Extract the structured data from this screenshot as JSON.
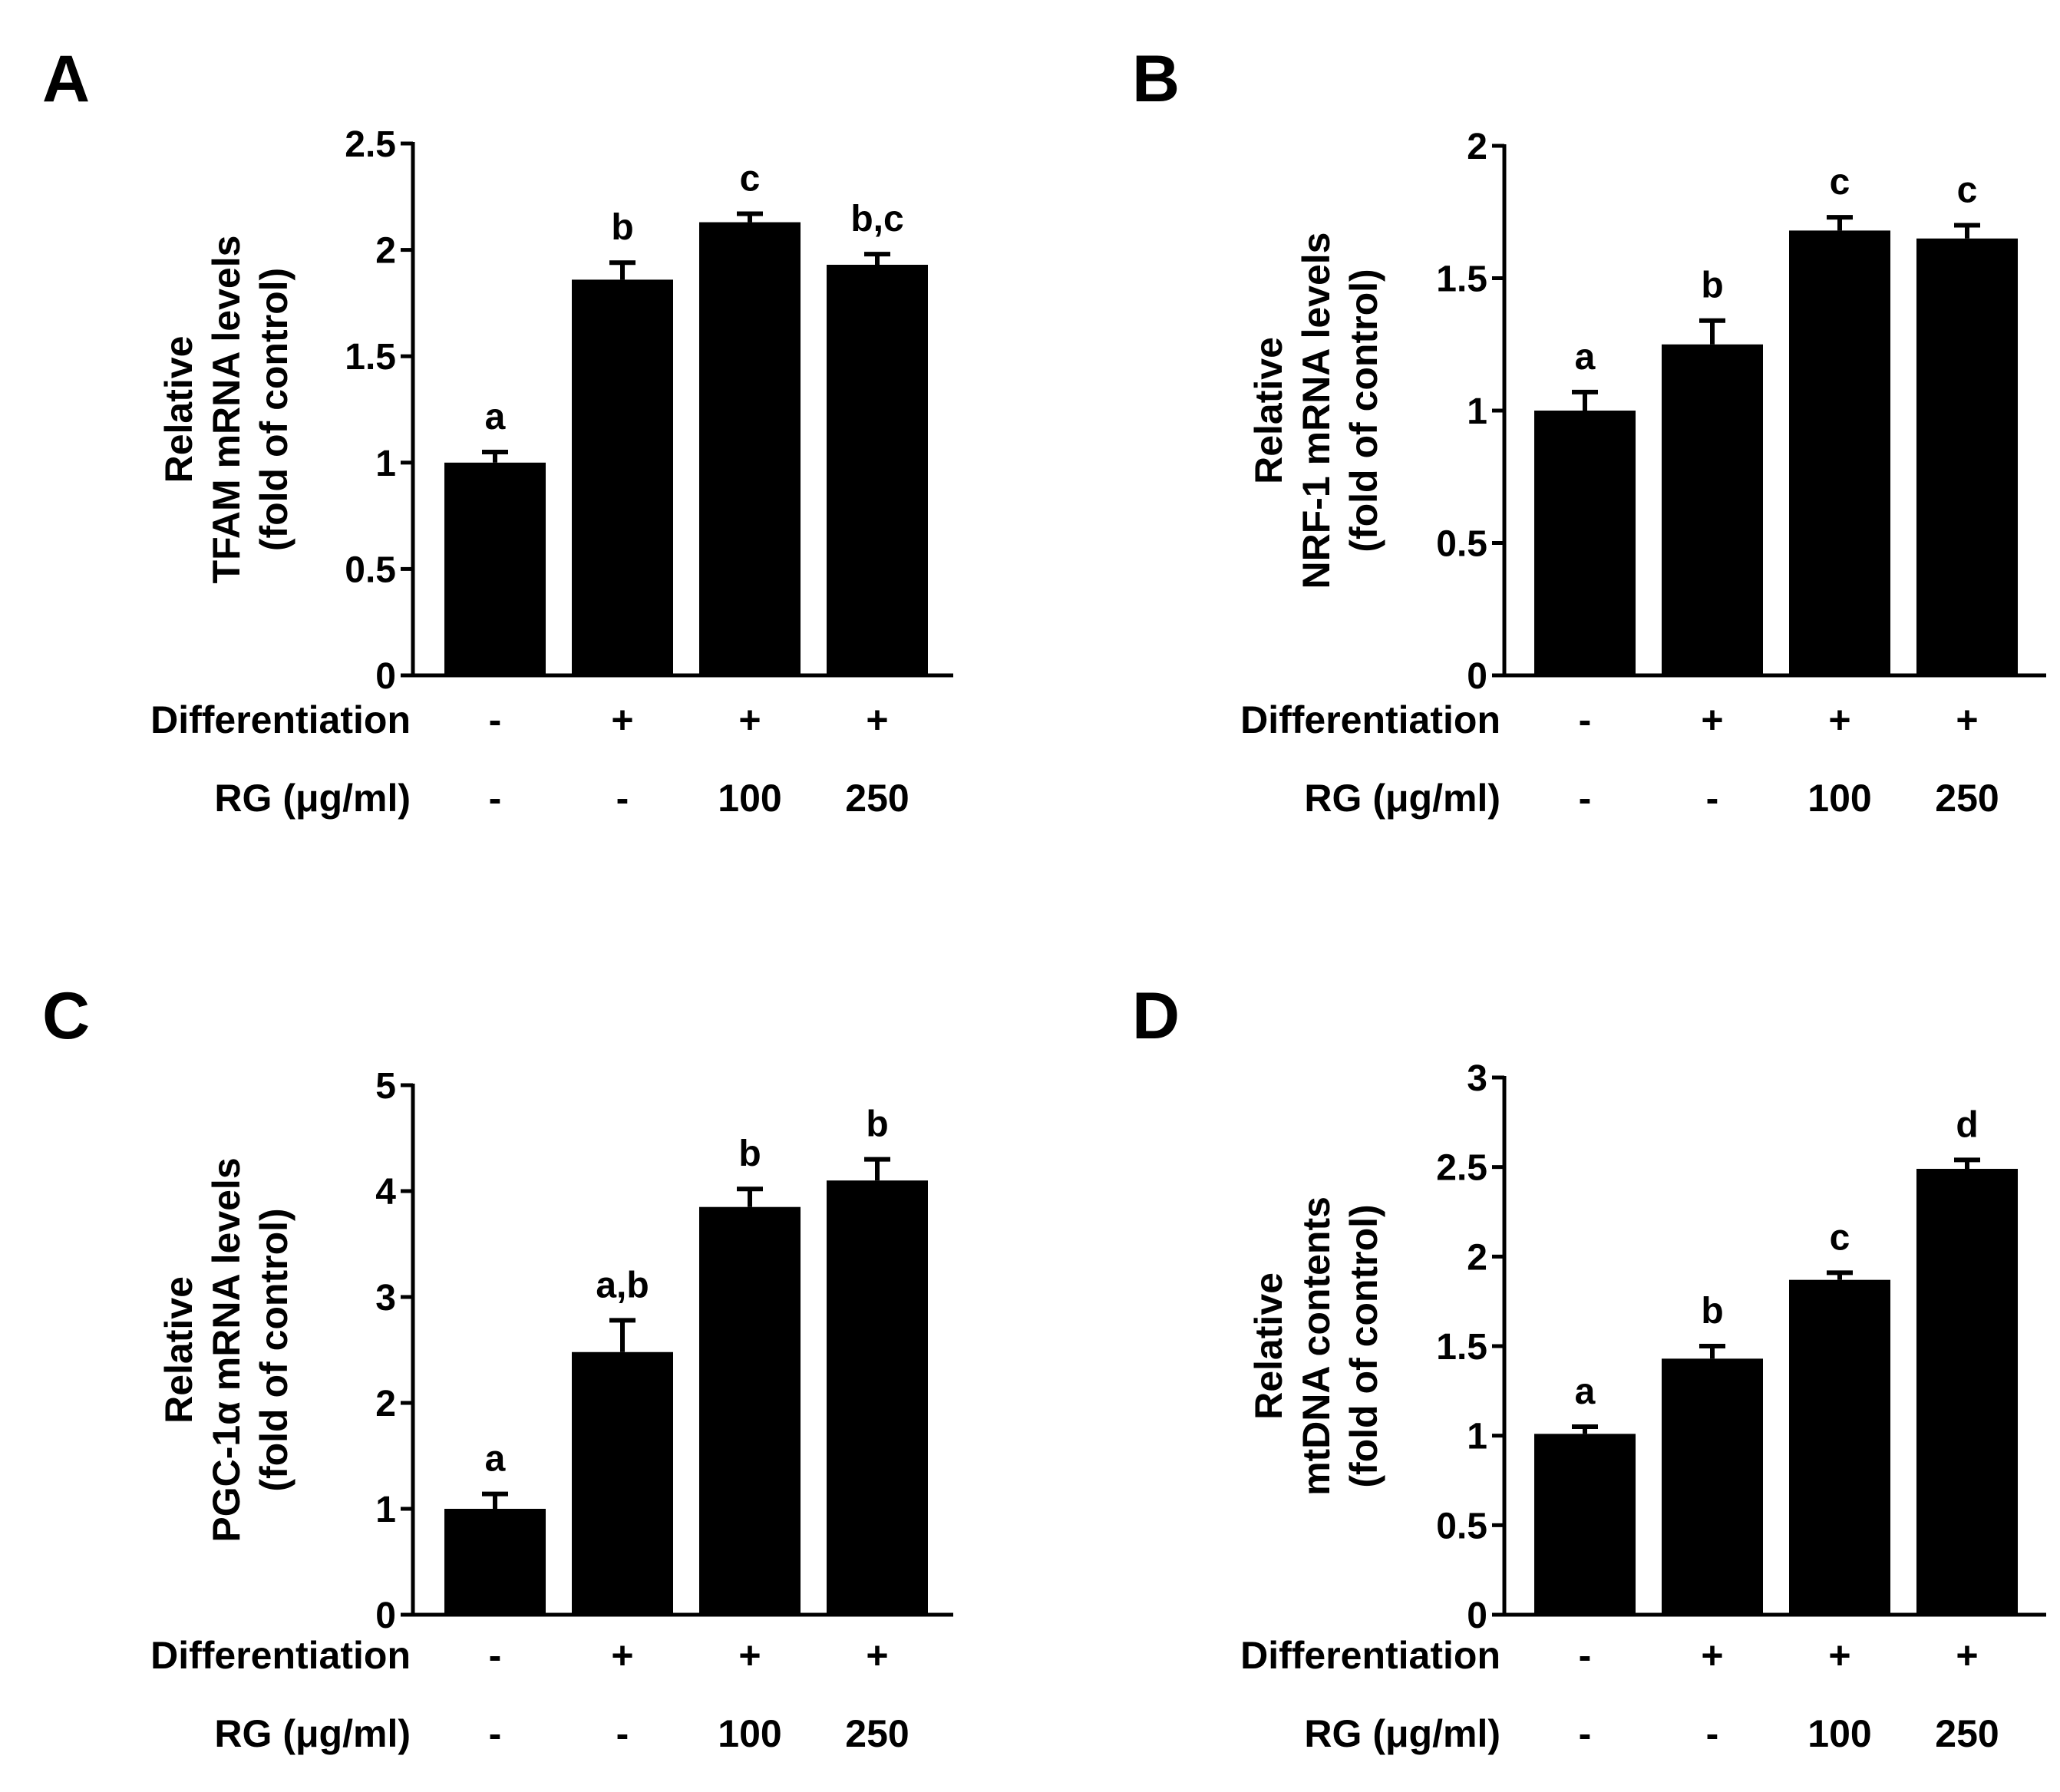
{
  "chart_data": [
    {
      "type": "bar",
      "panel_label": "A",
      "ylabel": [
        "Relative",
        "TFAM mRNA levels",
        "(fold of control)"
      ],
      "ylim": [
        0,
        2.5
      ],
      "ytick_labels": [
        "0",
        "0.5",
        "1",
        "1.5",
        "2",
        "2.5"
      ],
      "values": [
        1.0,
        1.86,
        2.13,
        1.93
      ],
      "errors": [
        0.05,
        0.08,
        0.04,
        0.05
      ],
      "significance": [
        "a",
        "b",
        "c",
        "b,c"
      ],
      "row_labels": [
        "Differentiation",
        "RG (μg/ml)"
      ],
      "differentiation": [
        "-",
        "+",
        "+",
        "+"
      ],
      "rg": [
        "-",
        "-",
        "100",
        "250"
      ]
    },
    {
      "type": "bar",
      "panel_label": "B",
      "ylabel": [
        "Relative",
        "NRF-1 mRNA levels",
        "(fold of control)"
      ],
      "ylim": [
        0,
        2
      ],
      "ytick_labels": [
        "0",
        "0.5",
        "1",
        "1.5",
        "2"
      ],
      "values": [
        1.0,
        1.25,
        1.68,
        1.65
      ],
      "errors": [
        0.07,
        0.09,
        0.05,
        0.05
      ],
      "significance": [
        "a",
        "b",
        "c",
        "c"
      ],
      "row_labels": [
        "Differentiation",
        "RG (μg/ml)"
      ],
      "differentiation": [
        "-",
        "+",
        "+",
        "+"
      ],
      "rg": [
        "-",
        "-",
        "100",
        "250"
      ]
    },
    {
      "type": "bar",
      "panel_label": "C",
      "ylabel": [
        "Relative",
        "PGC-1α mRNA levels",
        "(fold of control)"
      ],
      "ylim": [
        0,
        5
      ],
      "ytick_labels": [
        "0",
        "1",
        "2",
        "3",
        "4",
        "5"
      ],
      "values": [
        1.0,
        2.48,
        3.85,
        4.1
      ],
      "errors": [
        0.14,
        0.3,
        0.17,
        0.2
      ],
      "significance": [
        "a",
        "a,b",
        "b",
        "b"
      ],
      "row_labels": [
        "Differentiation",
        "RG (μg/ml)"
      ],
      "differentiation": [
        "-",
        "+",
        "+",
        "+"
      ],
      "rg": [
        "-",
        "-",
        "100",
        "250"
      ]
    },
    {
      "type": "bar",
      "panel_label": "D",
      "ylabel": [
        "Relative",
        "mtDNA contents",
        "(fold of control)"
      ],
      "ylim": [
        0,
        3
      ],
      "ytick_labels": [
        "0",
        "0.5",
        "1",
        "1.5",
        "2",
        "2.5",
        "3"
      ],
      "values": [
        1.01,
        1.43,
        1.87,
        2.49
      ],
      "errors": [
        0.04,
        0.07,
        0.04,
        0.05
      ],
      "significance": [
        "a",
        "b",
        "c",
        "d"
      ],
      "row_labels": [
        "Differentiation",
        "RG (μg/ml)"
      ],
      "differentiation": [
        "-",
        "+",
        "+",
        "+"
      ],
      "rg": [
        "-",
        "-",
        "100",
        "250"
      ]
    }
  ],
  "colors": {
    "bar": "#000000",
    "axis": "#000000",
    "background": "#ffffff"
  }
}
